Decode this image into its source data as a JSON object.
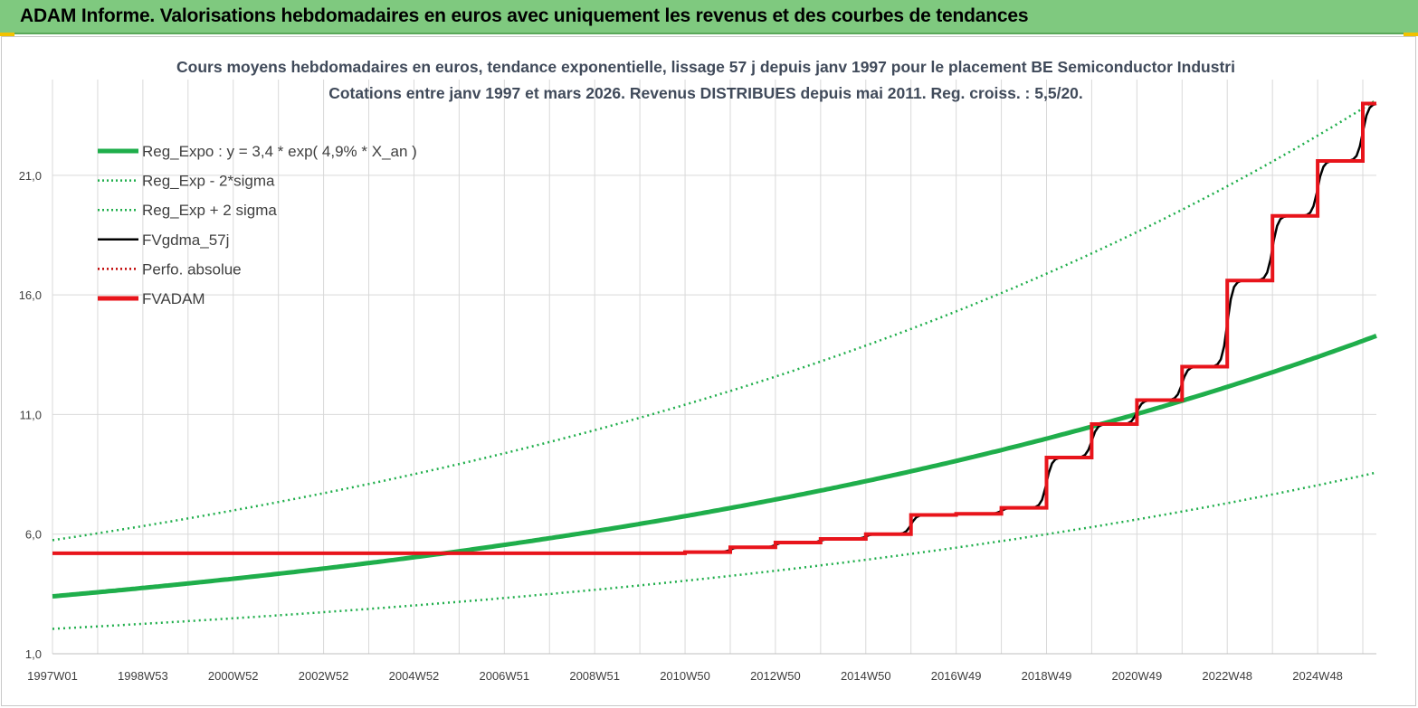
{
  "banner": {
    "title": "ADAM Informe. Valorisations hebdomadaires en euros avec uniquement les revenus et des courbes de tendances",
    "color": "#7fc97f"
  },
  "chart_data": {
    "type": "line",
    "title_line1": "Cours moyens hebdomadaires en euros, tendance exponentielle, lissage 57 j depuis janv 1997  pour le placement BE Semiconductor Industri",
    "title_line2": "Cotations entre janv 1997 et mars 2026. Revenus DISTRIBUES depuis mai 2011. Reg. croiss. : 5,5/20.",
    "xlabel": "",
    "ylabel": "",
    "x_range": [
      1997.0,
      2026.3
    ],
    "ylim": [
      1.0,
      25.0
    ],
    "y_ticks": [
      "1,0",
      "6,0",
      "11,0",
      "16,0",
      "21,0"
    ],
    "y_tick_values": [
      1,
      6,
      11,
      16,
      21
    ],
    "x_ticks": [
      {
        "label": "1997W01",
        "x": 1997.0
      },
      {
        "label": "1998W53",
        "x": 1999.0
      },
      {
        "label": "2000W52",
        "x": 2001.0
      },
      {
        "label": "2002W52",
        "x": 2003.0
      },
      {
        "label": "2004W52",
        "x": 2005.0
      },
      {
        "label": "2006W51",
        "x": 2007.0
      },
      {
        "label": "2008W51",
        "x": 2009.0
      },
      {
        "label": "2010W50",
        "x": 2011.0
      },
      {
        "label": "2012W50",
        "x": 2013.0
      },
      {
        "label": "2014W50",
        "x": 2015.0
      },
      {
        "label": "2016W49",
        "x": 2017.0
      },
      {
        "label": "2018W49",
        "x": 2019.0
      },
      {
        "label": "2020W49",
        "x": 2021.0
      },
      {
        "label": "2022W48",
        "x": 2023.0
      },
      {
        "label": "2024W48",
        "x": 2025.0
      }
    ],
    "grid": true,
    "legend_position": "top-left",
    "regression": {
      "a": 3.4,
      "rate": 0.049,
      "band_low_factor": 0.6,
      "band_high_factor": 1.69
    },
    "series": [
      {
        "name": "Reg_Expo : y = 3,4 * exp( 4,9% *  X_an )",
        "color": "#1fae4b",
        "style": "solid-thick",
        "kind": "regression"
      },
      {
        "name": "Reg_Exp - 2*sigma",
        "color": "#1fae4b",
        "style": "dotted",
        "kind": "band_low"
      },
      {
        "name": "Reg_Exp + 2 sigma",
        "color": "#1fae4b",
        "style": "dotted",
        "kind": "band_high"
      },
      {
        "name": "FVgdma_57j",
        "color": "#000000",
        "style": "solid-smooth",
        "kind": "smoothed"
      },
      {
        "name": "Perfo. absolue",
        "color": "#c00000",
        "style": "dotted",
        "kind": "none"
      },
      {
        "name": "FVADAM",
        "color": "#e8141b",
        "style": "step-thick",
        "kind": "step",
        "points": [
          {
            "x": 1997.0,
            "y": 5.2
          },
          {
            "x": 2011.0,
            "y": 5.25
          },
          {
            "x": 2012.0,
            "y": 5.45
          },
          {
            "x": 2013.0,
            "y": 5.65
          },
          {
            "x": 2014.0,
            "y": 5.8
          },
          {
            "x": 2015.0,
            "y": 6.0
          },
          {
            "x": 2016.0,
            "y": 6.8
          },
          {
            "x": 2017.0,
            "y": 6.85
          },
          {
            "x": 2018.0,
            "y": 7.1
          },
          {
            "x": 2019.0,
            "y": 9.2
          },
          {
            "x": 2020.0,
            "y": 10.6
          },
          {
            "x": 2021.0,
            "y": 11.6
          },
          {
            "x": 2022.0,
            "y": 13.0
          },
          {
            "x": 2023.0,
            "y": 16.6
          },
          {
            "x": 2024.0,
            "y": 19.3
          },
          {
            "x": 2025.0,
            "y": 21.6
          },
          {
            "x": 2026.0,
            "y": 24.0
          },
          {
            "x": 2026.3,
            "y": 24.0
          }
        ]
      }
    ]
  }
}
